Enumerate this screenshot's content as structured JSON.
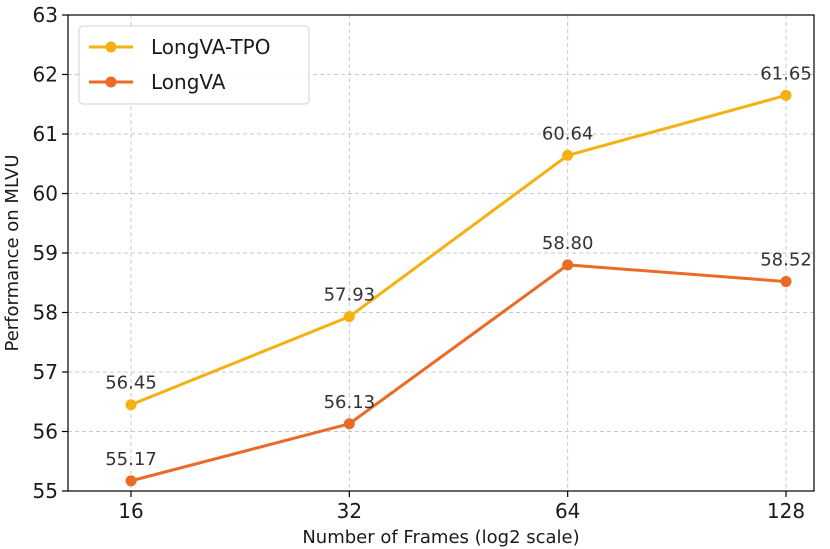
{
  "chart_data": {
    "type": "line",
    "title": "",
    "xlabel": "Number of Frames (log2 scale)",
    "ylabel": "Performance on MLVU",
    "x_scale": "log2",
    "categories": [
      "16",
      "32",
      "64",
      "128"
    ],
    "x": [
      16,
      32,
      64,
      128
    ],
    "ylim": [
      55,
      63
    ],
    "yticks": [
      "55",
      "56",
      "57",
      "58",
      "59",
      "60",
      "61",
      "62",
      "63"
    ],
    "grid": true,
    "legend_position": "top-left",
    "series": [
      {
        "name": "LongVA-TPO",
        "color": "#F5B111",
        "values": [
          56.45,
          57.93,
          60.64,
          61.65
        ],
        "labels": [
          "56.45",
          "57.93",
          "60.64",
          "61.65"
        ]
      },
      {
        "name": "LongVA",
        "color": "#EA6A26",
        "values": [
          55.17,
          56.13,
          58.8,
          58.52
        ],
        "labels": [
          "55.17",
          "56.13",
          "58.80",
          "58.52"
        ]
      }
    ]
  }
}
